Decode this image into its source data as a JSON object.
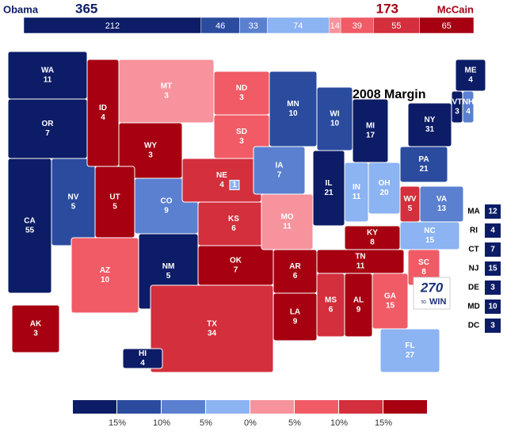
{
  "header": {
    "left_name": "Obama",
    "left_total": 365,
    "right_total": 173,
    "right_name": "McCain",
    "segments": [
      {
        "value": 212,
        "bin": 0
      },
      {
        "value": 46,
        "bin": 1
      },
      {
        "value": 33,
        "bin": 2
      },
      {
        "value": 74,
        "bin": 3
      },
      {
        "value": 14,
        "bin": 4
      },
      {
        "value": 39,
        "bin": 5
      },
      {
        "value": 55,
        "bin": 6
      },
      {
        "value": 65,
        "bin": 7
      }
    ]
  },
  "title": "2008 Margin",
  "colors": [
    "#0c1c66",
    "#2a4b9e",
    "#5a80cf",
    "#8cb3f2",
    "#f6939c",
    "#f05b66",
    "#d32f3c",
    "#a60011"
  ],
  "states": [
    {
      "abbr": "WA",
      "votes": 11,
      "bin": 0
    },
    {
      "abbr": "OR",
      "votes": 7,
      "bin": 0
    },
    {
      "abbr": "CA",
      "votes": 55,
      "bin": 0
    },
    {
      "abbr": "NV",
      "votes": 5,
      "bin": 1
    },
    {
      "abbr": "ID",
      "votes": 4,
      "bin": 7
    },
    {
      "abbr": "MT",
      "votes": 3,
      "bin": 4
    },
    {
      "abbr": "WY",
      "votes": 3,
      "bin": 7
    },
    {
      "abbr": "UT",
      "votes": 5,
      "bin": 7
    },
    {
      "abbr": "CO",
      "votes": 9,
      "bin": 2
    },
    {
      "abbr": "AZ",
      "votes": 10,
      "bin": 5
    },
    {
      "abbr": "NM",
      "votes": 5,
      "bin": 0
    },
    {
      "abbr": "ND",
      "votes": 3,
      "bin": 5
    },
    {
      "abbr": "SD",
      "votes": 3,
      "bin": 5
    },
    {
      "abbr": "NE",
      "votes": 4,
      "bin": 6,
      "district_votes": 1,
      "district_bin": 3
    },
    {
      "abbr": "KS",
      "votes": 6,
      "bin": 6
    },
    {
      "abbr": "OK",
      "votes": 7,
      "bin": 7
    },
    {
      "abbr": "TX",
      "votes": 34,
      "bin": 6
    },
    {
      "abbr": "MN",
      "votes": 10,
      "bin": 1
    },
    {
      "abbr": "IA",
      "votes": 7,
      "bin": 2
    },
    {
      "abbr": "MO",
      "votes": 11,
      "bin": 4
    },
    {
      "abbr": "AR",
      "votes": 6,
      "bin": 7
    },
    {
      "abbr": "LA",
      "votes": 9,
      "bin": 7
    },
    {
      "abbr": "WI",
      "votes": 10,
      "bin": 1
    },
    {
      "abbr": "IL",
      "votes": 21,
      "bin": 0
    },
    {
      "abbr": "MI",
      "votes": 17,
      "bin": 0
    },
    {
      "abbr": "IN",
      "votes": 11,
      "bin": 3
    },
    {
      "abbr": "OH",
      "votes": 20,
      "bin": 3
    },
    {
      "abbr": "KY",
      "votes": 8,
      "bin": 7
    },
    {
      "abbr": "TN",
      "votes": 11,
      "bin": 7
    },
    {
      "abbr": "MS",
      "votes": 6,
      "bin": 6
    },
    {
      "abbr": "AL",
      "votes": 9,
      "bin": 7
    },
    {
      "abbr": "GA",
      "votes": 15,
      "bin": 5
    },
    {
      "abbr": "SC",
      "votes": 8,
      "bin": 5
    },
    {
      "abbr": "NC",
      "votes": 15,
      "bin": 3
    },
    {
      "abbr": "FL",
      "votes": 27,
      "bin": 3
    },
    {
      "abbr": "WV",
      "votes": 5,
      "bin": 6
    },
    {
      "abbr": "VA",
      "votes": 13,
      "bin": 2
    },
    {
      "abbr": "PA",
      "votes": 21,
      "bin": 1
    },
    {
      "abbr": "NY",
      "votes": 31,
      "bin": 0
    },
    {
      "abbr": "VT",
      "votes": 3,
      "bin": 0
    },
    {
      "abbr": "NH",
      "votes": 4,
      "bin": 2
    },
    {
      "abbr": "ME",
      "votes": 4,
      "bin": 0
    },
    {
      "abbr": "AK",
      "votes": 3,
      "bin": 7
    },
    {
      "abbr": "HI",
      "votes": 4,
      "bin": 0
    }
  ],
  "small_states": [
    {
      "abbr": "MA",
      "votes": 12,
      "bin": 0
    },
    {
      "abbr": "RI",
      "votes": 4,
      "bin": 0
    },
    {
      "abbr": "CT",
      "votes": 7,
      "bin": 0
    },
    {
      "abbr": "NJ",
      "votes": 15,
      "bin": 0
    },
    {
      "abbr": "DE",
      "votes": 3,
      "bin": 0
    },
    {
      "abbr": "MD",
      "votes": 10,
      "bin": 0
    },
    {
      "abbr": "DC",
      "votes": 3,
      "bin": 0
    }
  ],
  "logo": {
    "number": "270",
    "small": "to",
    "word": "WIN"
  },
  "legend": {
    "labels": [
      "15%",
      "10%",
      "5%",
      "0%",
      "5%",
      "10%",
      "15%"
    ]
  }
}
